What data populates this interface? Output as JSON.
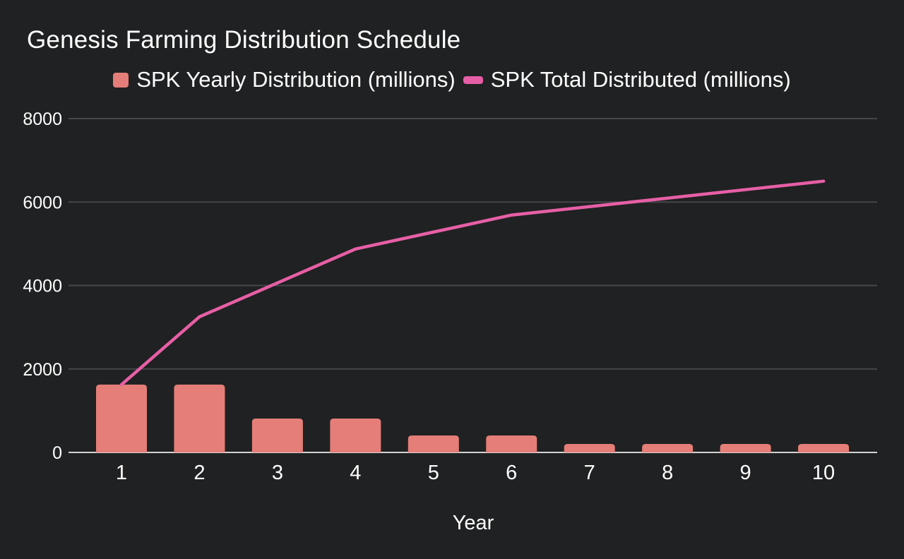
{
  "chart_data": {
    "type": "combo",
    "title": "Genesis Farming Distribution Schedule",
    "categories": [
      "1",
      "2",
      "3",
      "4",
      "5",
      "6",
      "7",
      "8",
      "9",
      "10"
    ],
    "series": [
      {
        "name": "SPK Yearly Distribution (millions)",
        "type": "bar",
        "color": "#e57e78",
        "values": [
          1625,
          1625,
          812.5,
          812.5,
          406.25,
          406.25,
          203.125,
          203.125,
          203.125,
          203.125
        ]
      },
      {
        "name": "SPK Total Distributed (millions)",
        "type": "line",
        "color": "#e65fa6",
        "values": [
          1625,
          3250,
          4062.5,
          4875,
          5281.25,
          5687.5,
          5890.625,
          6093.75,
          6296.875,
          6500
        ]
      }
    ],
    "xlabel": "Year",
    "ylabel": "",
    "ylim": [
      0,
      8000
    ],
    "y_ticks": [
      0,
      2000,
      4000,
      6000,
      8000
    ],
    "grid": true,
    "legend_position": "top"
  },
  "colors": {
    "background": "#202122",
    "text": "#ffffff",
    "grid": "#45464a",
    "axis_line": "#d2d2d2"
  }
}
